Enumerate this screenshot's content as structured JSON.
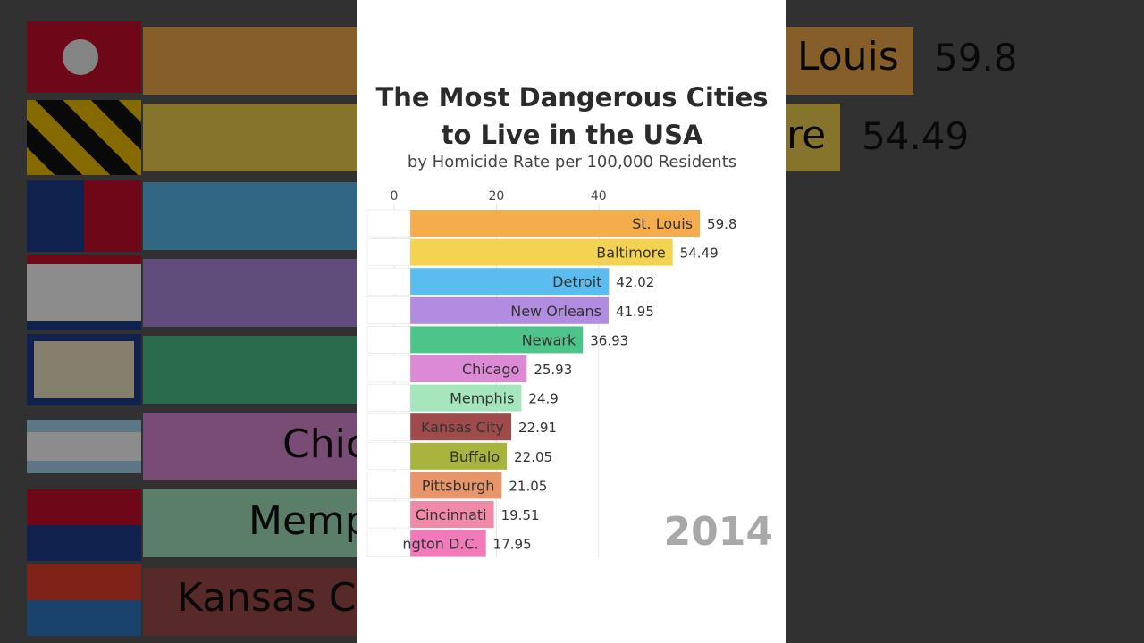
{
  "chart_data": {
    "type": "bar",
    "title": "The Most Dangerous Cities to Live in the USA",
    "subtitle": "by Homicide Rate per 100,000 Residents",
    "year": "2014",
    "xlim": [
      0,
      60
    ],
    "xticks": [
      0,
      20,
      40
    ],
    "grid": true,
    "categories": [
      "St. Louis",
      "Baltimore",
      "Detroit",
      "New Orleans",
      "Newark",
      "Chicago",
      "Memphis",
      "Kansas City",
      "Buffalo",
      "Pittsburgh",
      "Cincinnati",
      "Washington D.C."
    ],
    "values": [
      59.8,
      54.49,
      42.02,
      41.95,
      36.93,
      25.93,
      24.9,
      22.91,
      22.05,
      21.05,
      19.51,
      17.95
    ],
    "value_labels": [
      "59.8",
      "54.49",
      "42.02",
      "41.95",
      "36.93",
      "25.93",
      "24.9",
      "22.91",
      "22.05",
      "21.05",
      "19.51",
      "17.95"
    ],
    "bar_labels": [
      "St. Louis",
      "Baltimore",
      "Detroit",
      "New Orleans",
      "Newark",
      "Chicago",
      "Memphis",
      "Kansas City",
      "Buffalo",
      "Pittsburgh",
      "Cincinnati",
      "ngton D.C."
    ],
    "colors": [
      "#f5ac4c",
      "#f5d352",
      "#5bbcef",
      "#b18ce0",
      "#4cc48a",
      "#dd8ad6",
      "#a6e6bd",
      "#a04b4b",
      "#a8b43e",
      "#e8956a",
      "#f08aa8",
      "#f07aba"
    ]
  },
  "background": {
    "left_fragments": [
      "Chic",
      "Memp",
      "Kansas Ci"
    ],
    "right_fragments": [
      "Louis",
      "re"
    ],
    "right_values": [
      "59.8",
      "54.49"
    ]
  }
}
